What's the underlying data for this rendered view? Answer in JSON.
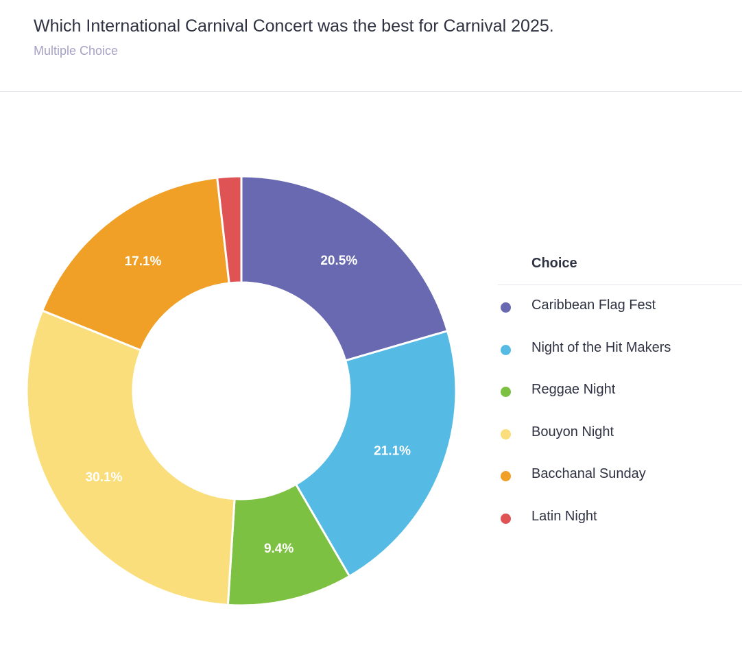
{
  "header": {
    "title": "Which International Carnival Concert was the best for Carnival 2025.",
    "subtitle": "Multiple Choice"
  },
  "legend": {
    "header": "Choice"
  },
  "chart_data": {
    "type": "pie",
    "variant": "donut",
    "title": "Which International Carnival Concert was the best for Carnival 2025.",
    "legend_title": "Choice",
    "legend_position": "right",
    "categories": [
      "Caribbean Flag Fest",
      "Night of the Hit Makers",
      "Reggae Night",
      "Bouyon Night",
      "Bacchanal Sunday",
      "Latin Night"
    ],
    "values": [
      20.5,
      21.1,
      9.4,
      30.1,
      17.1,
      1.8
    ],
    "value_labels": [
      "20.5%",
      "21.1%",
      "9.4%",
      "30.1%",
      "17.1%",
      ""
    ],
    "colors": [
      "#6869b1",
      "#55bae4",
      "#7dc142",
      "#f9de7b",
      "#f0a026",
      "#e05355"
    ]
  }
}
